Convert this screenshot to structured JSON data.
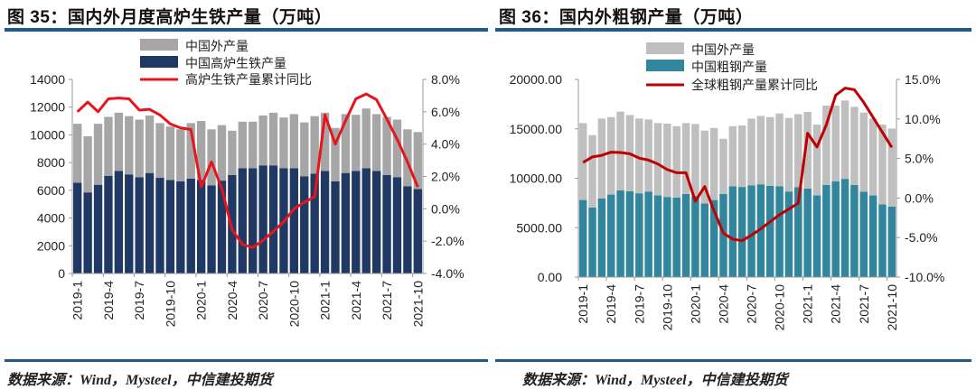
{
  "left": {
    "title": "图 35：国内外月度高炉生铁产量（万吨）",
    "source": "数据来源：Wind，Mysteel，中信建投期货"
  },
  "right": {
    "title": "图 36：国内外粗钢产量（万吨）",
    "source": "数据来源：Wind，Mysteel，中信建投期货"
  },
  "chart_data": [
    {
      "type": "bar",
      "stacked": true,
      "title": "图 35：国内外月度高炉生铁产量（万吨）",
      "categories": [
        "2019-1",
        "2019-2",
        "2019-3",
        "2019-4",
        "2019-5",
        "2019-6",
        "2019-7",
        "2019-8",
        "2019-9",
        "2019-10",
        "2019-11",
        "2019-12",
        "2020-1",
        "2020-2",
        "2020-3",
        "2020-4",
        "2020-5",
        "2020-6",
        "2020-7",
        "2020-8",
        "2020-9",
        "2020-10",
        "2020-11",
        "2020-12",
        "2021-1",
        "2021-2",
        "2021-3",
        "2021-4",
        "2021-5",
        "2021-6",
        "2021-7",
        "2021-8",
        "2021-9",
        "2021-10"
      ],
      "x_tick_labels": [
        "2019-1",
        "2019-4",
        "2019-7",
        "2019-10",
        "2020-1",
        "2020-4",
        "2020-7",
        "2020-10",
        "2021-1",
        "2021-4",
        "2021-7",
        "2021-10"
      ],
      "ylim": [
        0,
        14000
      ],
      "y_ticks": [
        "0",
        "2000",
        "4000",
        "6000",
        "8000",
        "10000",
        "12000",
        "14000"
      ],
      "y2lim": [
        -4,
        8
      ],
      "y2_ticks": [
        "-4.0%",
        "-2.0%",
        "0.0%",
        "2.0%",
        "4.0%",
        "6.0%",
        "8.0%"
      ],
      "grid": false,
      "legend_position": "top-center",
      "series": [
        {
          "name": "中国高炉生铁产量",
          "kind": "bar",
          "color": "#203864",
          "values": [
            6550,
            5850,
            6400,
            7050,
            7400,
            7150,
            6950,
            7250,
            6900,
            6750,
            6650,
            6850,
            6750,
            6350,
            6700,
            7100,
            7600,
            7600,
            7800,
            7800,
            7600,
            7600,
            7000,
            7200,
            7400,
            6650,
            7250,
            7400,
            7600,
            7400,
            7100,
            6950,
            6300,
            6100
          ]
        },
        {
          "name": "中国外产量",
          "kind": "bar",
          "color": "#a6a6a6",
          "values": [
            4250,
            4050,
            4400,
            4250,
            4200,
            4200,
            4150,
            4150,
            3950,
            3850,
            3750,
            4000,
            4250,
            4050,
            4000,
            3200,
            3350,
            3350,
            3600,
            3800,
            3650,
            3900,
            3900,
            4150,
            4200,
            3850,
            4250,
            4050,
            4300,
            4100,
            4200,
            4150,
            4100,
            4100
          ]
        },
        {
          "name": "高炉生铁产量累计同比",
          "kind": "line",
          "axis": "right",
          "color": "#e8141b",
          "unit": "%",
          "values": [
            6.0,
            6.6,
            6.0,
            6.8,
            6.85,
            6.8,
            6.1,
            6.15,
            5.8,
            5.25,
            5.0,
            4.9,
            1.35,
            2.9,
            1.25,
            -1.3,
            -2.2,
            -2.4,
            -1.95,
            -1.4,
            -0.8,
            0.0,
            0.4,
            0.75,
            5.8,
            4.0,
            5.45,
            6.8,
            7.1,
            6.75,
            5.55,
            4.3,
            2.9,
            1.35
          ]
        }
      ]
    },
    {
      "type": "bar",
      "stacked": true,
      "title": "图 36：国内外粗钢产量（万吨）",
      "categories": [
        "2019-1",
        "2019-2",
        "2019-3",
        "2019-4",
        "2019-5",
        "2019-6",
        "2019-7",
        "2019-8",
        "2019-9",
        "2019-10",
        "2019-11",
        "2019-12",
        "2020-1",
        "2020-2",
        "2020-3",
        "2020-4",
        "2020-5",
        "2020-6",
        "2020-7",
        "2020-8",
        "2020-9",
        "2020-10",
        "2020-11",
        "2020-12",
        "2021-1",
        "2021-2",
        "2021-3",
        "2021-4",
        "2021-5",
        "2021-6",
        "2021-7",
        "2021-8",
        "2021-9",
        "2021-10"
      ],
      "x_tick_labels": [
        "2019-1",
        "2019-4",
        "2019-7",
        "2019-10",
        "2020-1",
        "2020-4",
        "2020-7",
        "2020-10",
        "2021-1",
        "2021-4",
        "2021-7",
        "2021-10"
      ],
      "ylim": [
        0,
        20000
      ],
      "y_ticks": [
        "0.00",
        "5000.00",
        "10000.00",
        "15000.00",
        "20000.00"
      ],
      "y2lim": [
        -10,
        15
      ],
      "y2_ticks": [
        "-10.0%",
        "-5.0%",
        "0.0%",
        "5.0%",
        "10.0%",
        "15.0%"
      ],
      "grid": false,
      "legend_position": "top-center",
      "series": [
        {
          "name": "中国粗钢产量",
          "kind": "bar",
          "color": "#31859c",
          "values": [
            7800,
            7040,
            7960,
            8350,
            8780,
            8690,
            8480,
            8660,
            8260,
            8110,
            8050,
            8410,
            8200,
            7440,
            7800,
            8410,
            9180,
            9120,
            9270,
            9390,
            9240,
            9180,
            8660,
            9090,
            8960,
            8260,
            9330,
            9700,
            9940,
            9330,
            8630,
            8260,
            7350,
            7130
          ]
        },
        {
          "name": "中国外产量",
          "kind": "bar",
          "color": "#bfbfbf",
          "values": [
            7780,
            7320,
            8080,
            7840,
            7960,
            7710,
            7560,
            7290,
            7320,
            7410,
            7220,
            7170,
            7290,
            7380,
            7290,
            5580,
            6090,
            6220,
            6770,
            6920,
            6950,
            7380,
            7440,
            7400,
            7750,
            7170,
            8020,
            7650,
            7930,
            7900,
            8020,
            7780,
            8080,
            7900
          ]
        },
        {
          "name": "全球粗钢产量累计同比",
          "kind": "line",
          "axis": "right",
          "color": "#c00000",
          "unit": "%",
          "values": [
            4.5,
            5.2,
            5.4,
            5.8,
            5.75,
            5.6,
            5.05,
            4.8,
            4.3,
            3.6,
            3.2,
            3.2,
            -0.4,
            1.45,
            -1.6,
            -4.45,
            -5.2,
            -5.4,
            -4.7,
            -3.9,
            -3.0,
            -2.1,
            -1.4,
            -0.65,
            8.2,
            6.45,
            9.25,
            13.0,
            13.9,
            13.7,
            12.1,
            10.2,
            8.3,
            6.4
          ]
        }
      ]
    }
  ]
}
